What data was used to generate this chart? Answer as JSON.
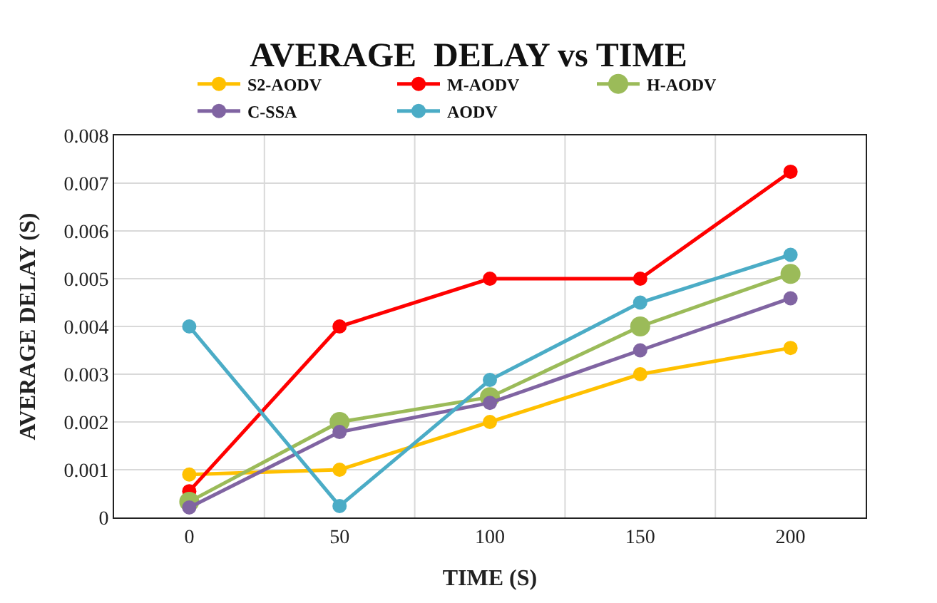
{
  "chart_data": {
    "type": "line",
    "title": "AVERAGE  DELAY vs TIME",
    "xlabel": "TIME (S)",
    "ylabel": "AVERAGE DELAY (S)",
    "categories": [
      "0",
      "50",
      "100",
      "150",
      "200"
    ],
    "series": [
      {
        "name": "S2-AODV",
        "color": "#ffc000",
        "values": [
          0.0009,
          0.001,
          0.002,
          0.003,
          0.00355
        ]
      },
      {
        "name": "M-AODV",
        "color": "#ff0000",
        "values": [
          0.00055,
          0.004,
          0.005,
          0.005,
          0.00724
        ]
      },
      {
        "name": "H-AODV",
        "color": "#9bbb59",
        "values": [
          0.00033,
          0.002,
          0.00252,
          0.004,
          0.0051
        ]
      },
      {
        "name": "C-SSA",
        "color": "#8064a2",
        "values": [
          0.00021,
          0.00179,
          0.0024,
          0.0035,
          0.00459
        ]
      },
      {
        "name": "AODV",
        "color": "#4bacc6",
        "values": [
          0.004,
          0.00024,
          0.00288,
          0.0045,
          0.0055
        ]
      }
    ],
    "ylim": [
      0,
      0.008
    ],
    "yticks": [
      0,
      0.001,
      0.002,
      0.003,
      0.004,
      0.005,
      0.006,
      0.007,
      0.008
    ],
    "grid": true,
    "legend": "top",
    "marker": "circle",
    "line_style": "solid"
  }
}
